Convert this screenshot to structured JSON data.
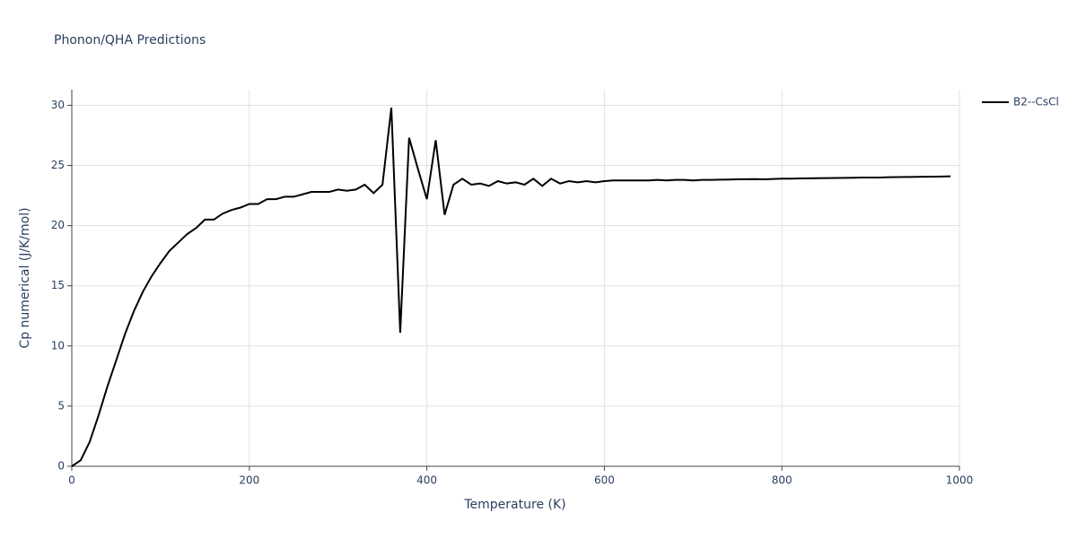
{
  "chart_data": {
    "type": "line",
    "title": "Phonon/QHA Predictions",
    "x_label": "Temperature (K)",
    "y_label": "Cp numerical (J/K/mol)",
    "x": [
      0,
      10,
      20,
      30,
      40,
      50,
      60,
      70,
      80,
      90,
      100,
      110,
      120,
      130,
      140,
      150,
      160,
      170,
      180,
      190,
      200,
      210,
      220,
      230,
      240,
      250,
      260,
      270,
      280,
      290,
      300,
      310,
      320,
      330,
      340,
      350,
      360,
      370,
      380,
      390,
      400,
      410,
      420,
      430,
      440,
      450,
      460,
      470,
      480,
      490,
      500,
      510,
      520,
      530,
      540,
      550,
      560,
      570,
      580,
      590,
      600,
      610,
      620,
      630,
      640,
      650,
      660,
      670,
      680,
      690,
      700,
      710,
      720,
      730,
      740,
      750,
      760,
      770,
      780,
      790,
      800,
      810,
      820,
      830,
      840,
      850,
      860,
      870,
      880,
      890,
      900,
      910,
      920,
      930,
      940,
      950,
      960,
      970,
      980,
      990
    ],
    "series": [
      {
        "name": "B2--CsCl",
        "color": "#000000",
        "values": [
          0,
          0.5,
          2.0,
          4.2,
          6.6,
          8.8,
          11.0,
          12.9,
          14.5,
          15.8,
          16.9,
          17.9,
          18.6,
          19.3,
          19.8,
          20.5,
          20.5,
          21.0,
          21.3,
          21.5,
          21.8,
          21.8,
          22.2,
          22.2,
          22.4,
          22.4,
          22.6,
          22.8,
          22.8,
          22.8,
          23.0,
          22.9,
          23.0,
          23.4,
          22.7,
          23.4,
          29.8,
          11.1,
          27.3,
          24.7,
          22.2,
          27.1,
          20.9,
          23.4,
          23.9,
          23.4,
          23.5,
          23.3,
          23.7,
          23.5,
          23.6,
          23.4,
          23.9,
          23.3,
          23.9,
          23.5,
          23.7,
          23.6,
          23.7,
          23.6,
          23.7,
          23.75,
          23.75,
          23.75,
          23.75,
          23.75,
          23.8,
          23.75,
          23.8,
          23.8,
          23.75,
          23.8,
          23.8,
          23.82,
          23.83,
          23.85,
          23.86,
          23.87,
          23.85,
          23.88,
          23.9,
          23.9,
          23.92,
          23.93,
          23.94,
          23.95,
          23.96,
          23.97,
          23.98,
          24.0,
          24.0,
          24.0,
          24.02,
          24.03,
          24.04,
          24.05,
          24.06,
          24.07,
          24.08,
          24.1
        ]
      }
    ],
    "xlim": [
      0,
      1000
    ],
    "xticks": [
      0,
      200,
      400,
      600,
      800,
      1000
    ],
    "ylim": [
      0,
      31.3
    ],
    "yticks": [
      0,
      5,
      10,
      15,
      20,
      25,
      30
    ],
    "grid": true,
    "legend": "right"
  }
}
